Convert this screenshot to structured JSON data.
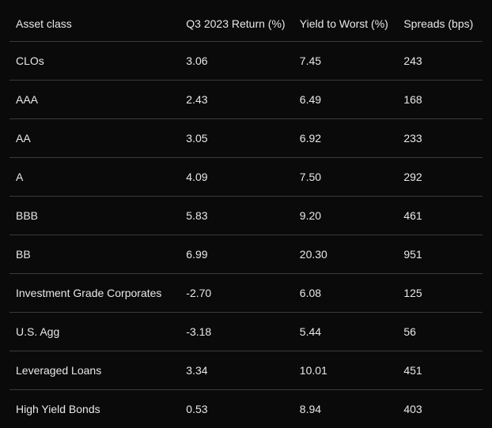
{
  "table": {
    "type": "table",
    "background_color": "#0a0a0a",
    "text_color": "#e8e8e8",
    "border_color": "#3a3a3a",
    "font_size": 14,
    "columns": [
      {
        "label": "Asset class",
        "align": "left",
        "width_pct": 36
      },
      {
        "label": "Q3 2023 Return (%)",
        "align": "left",
        "width_pct": 24
      },
      {
        "label": "Yield to Worst (%)",
        "align": "left",
        "width_pct": 22
      },
      {
        "label": "Spreads (bps)",
        "align": "left",
        "width_pct": 18
      }
    ],
    "rows": [
      [
        "CLOs",
        "3.06",
        "7.45",
        "243"
      ],
      [
        "AAA",
        "2.43",
        "6.49",
        "168"
      ],
      [
        "AA",
        "3.05",
        "6.92",
        "233"
      ],
      [
        "A",
        "4.09",
        "7.50",
        "292"
      ],
      [
        "BBB",
        "5.83",
        "9.20",
        "461"
      ],
      [
        "BB",
        "6.99",
        "20.30",
        "951"
      ],
      [
        "Investment Grade Corporates",
        "-2.70",
        "6.08",
        "125"
      ],
      [
        "U.S. Agg",
        "-3.18",
        "5.44",
        "56"
      ],
      [
        "Leveraged Loans",
        "3.34",
        "10.01",
        "451"
      ],
      [
        "High Yield Bonds",
        "0.53",
        "8.94",
        "403"
      ]
    ]
  }
}
